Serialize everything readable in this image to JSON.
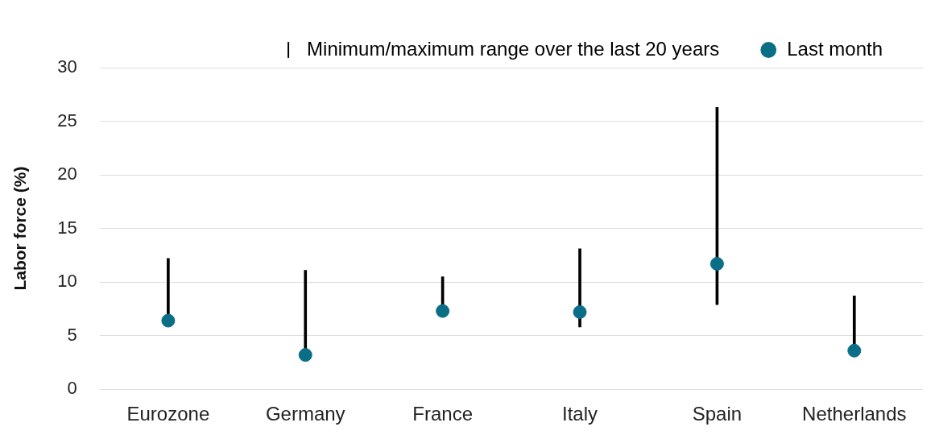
{
  "chart_data": {
    "type": "bar",
    "ylabel": "Labor force (%)",
    "categories": [
      "Eurozone",
      "Germany",
      "France",
      "Italy",
      "Spain",
      "Netherlands"
    ],
    "series": [
      {
        "name": "Minimum/maximum range over the last 20 years",
        "color": "#000000",
        "base": [
          6.4,
          3.2,
          7.3,
          5.8,
          7.9,
          3.6
        ],
        "values": [
          5.8,
          7.9,
          3.2,
          7.3,
          18.4,
          5.1
        ]
      },
      {
        "type": "scatter",
        "name": "Last month",
        "color": "#0b6e87",
        "values": [
          6.4,
          3.2,
          7.3,
          7.2,
          11.7,
          3.6
        ]
      }
    ],
    "ylim": [
      0,
      30
    ],
    "yticks": [
      0,
      5,
      10,
      15,
      20,
      25,
      30
    ],
    "grid": "y",
    "legend": "top right",
    "marker": "circle"
  }
}
